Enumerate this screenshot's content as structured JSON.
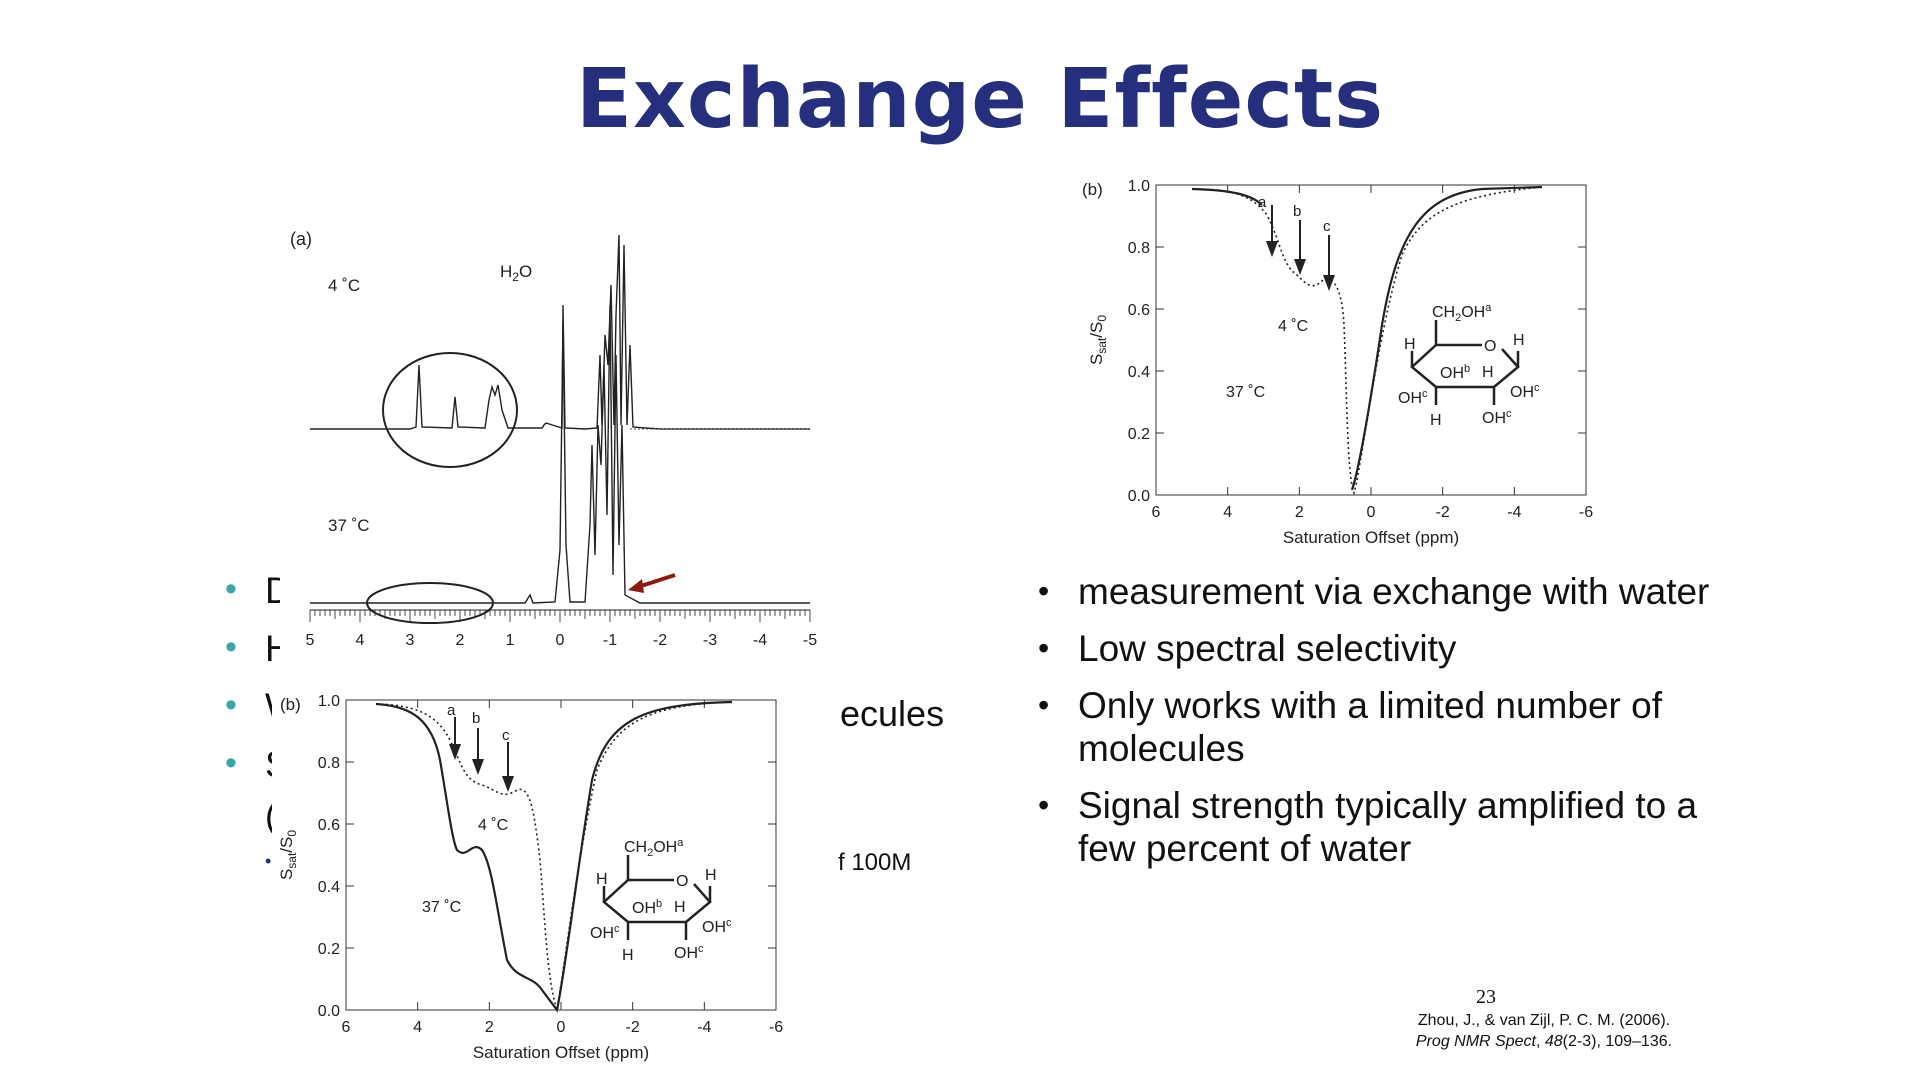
{
  "slide": {
    "title": "Exchange Effects",
    "page_number": "23",
    "left_bullets": [
      {
        "text": "D"
      },
      {
        "text": "H"
      },
      {
        "text": "W",
        "tail": "ecules"
      },
      {
        "text": "S"
      }
    ],
    "left_extra_fragment": "(",
    "left_sub_bullet_fragment": "f 100M",
    "right_bullets": [
      "measurement via exchange with water",
      "Low spectral selectivity",
      "Only works with a limited number of molecules",
      "Signal strength typically amplified to a few percent of water"
    ],
    "reference": {
      "line1": "Zhou, J., & van Zijl, P. C. M. (2006).",
      "journal": "Prog NMR Spect",
      "volume": "48",
      "rest": "(2-3), 109–136."
    }
  },
  "figures": {
    "nmr_spectrum": {
      "panel_label": "(a)",
      "temp_top": "4 ˚C",
      "temp_bottom": "37 ˚C",
      "peak_label": "H",
      "peak_label_sub": "2",
      "peak_label_tail": "O",
      "x_ticks": [
        "5",
        "4",
        "3",
        "2",
        "1",
        "0",
        "-1",
        "-2",
        "-3",
        "-4",
        "-5"
      ],
      "arrow_color": "#8b1a10"
    },
    "zspectrum_right": {
      "panel_label": "(b)",
      "ylabel_main": "S",
      "ylabel_sub1": "sat",
      "ylabel_sep": "/S",
      "ylabel_sub2": "0",
      "xlabel": "Saturation Offset (ppm)",
      "x_ticks": [
        "6",
        "4",
        "2",
        "0",
        "-2",
        "-4",
        "-6"
      ],
      "y_ticks": [
        "0.0",
        "0.2",
        "0.4",
        "0.6",
        "0.8",
        "1.0"
      ],
      "arrow_labels": [
        "a",
        "b",
        "c"
      ],
      "label_4c": "4 ˚C",
      "label_37c": "37 ˚C"
    },
    "zspectrum_left": {
      "panel_label": "(b)",
      "ylabel_main": "S",
      "ylabel_sub1": "sat",
      "ylabel_sep": "/S",
      "ylabel_sub2": "0",
      "xlabel": "Saturation Offset (ppm)",
      "x_ticks": [
        "6",
        "4",
        "2",
        "0",
        "-2",
        "-4",
        "-6"
      ],
      "y_ticks": [
        "0.0",
        "0.2",
        "0.4",
        "0.6",
        "0.8",
        "1.0"
      ],
      "arrow_labels": [
        "a",
        "b",
        "c"
      ],
      "label_4c": "4 ˚C",
      "label_37c": "37 ˚C"
    },
    "glucose": {
      "ch2oh": "CH",
      "ch2oh_sub": "2",
      "ch2oh_tail": "OH",
      "sup_a": "a",
      "sup_b": "b",
      "sup_c": "c",
      "ring_o": "O",
      "h": "H",
      "oh": "OH"
    }
  }
}
